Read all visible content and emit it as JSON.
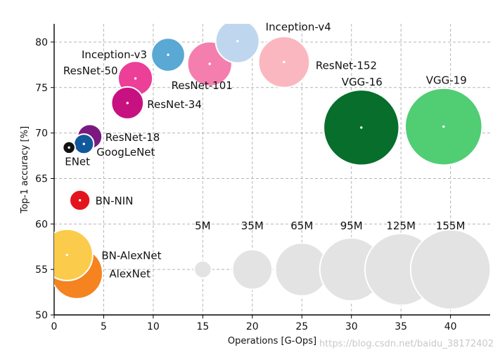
{
  "chart_data": {
    "type": "scatter",
    "xlabel": "Operations [G-Ops]",
    "ylabel": "Top-1 accuracy [%]",
    "xlim": [
      0,
      44
    ],
    "ylim": [
      50,
      82
    ],
    "xticks": [
      "0",
      "5",
      "10",
      "15",
      "20",
      "25",
      "30",
      "35",
      "40"
    ],
    "yticks": [
      "50",
      "55",
      "60",
      "65",
      "70",
      "75",
      "80"
    ],
    "grid": true,
    "points": [
      {
        "name": "AlexNet",
        "x": 2.3,
        "y": 54.6,
        "params_M": 61,
        "color": "#f5831f"
      },
      {
        "name": "BN-AlexNet",
        "x": 1.3,
        "y": 56.6,
        "params_M": 61,
        "color": "#fbcb4b"
      },
      {
        "name": "BN-NIN",
        "x": 2.6,
        "y": 62.6,
        "params_M": 7.6,
        "color": "#e3151c"
      },
      {
        "name": "ENet",
        "x": 1.5,
        "y": 68.4,
        "params_M": 2,
        "color": "#111111"
      },
      {
        "name": "GoogLeNet",
        "x": 3.0,
        "y": 68.8,
        "params_M": 7,
        "color": "#11589c"
      },
      {
        "name": "ResNet-18",
        "x": 3.6,
        "y": 69.6,
        "params_M": 11.7,
        "color": "#7a1a80"
      },
      {
        "name": "ResNet-34",
        "x": 7.4,
        "y": 73.3,
        "params_M": 21.8,
        "color": "#c81181"
      },
      {
        "name": "ResNet-50",
        "x": 8.2,
        "y": 76.0,
        "params_M": 25.6,
        "color": "#ec3f97"
      },
      {
        "name": "ResNet-101",
        "x": 15.7,
        "y": 77.6,
        "params_M": 44.5,
        "color": "#f47fae"
      },
      {
        "name": "ResNet-152",
        "x": 23.2,
        "y": 77.8,
        "params_M": 60.2,
        "color": "#fbb7c0"
      },
      {
        "name": "Inception-v3",
        "x": 11.5,
        "y": 78.6,
        "params_M": 23.8,
        "color": "#5aa8d4"
      },
      {
        "name": "Inception-v4",
        "x": 18.5,
        "y": 80.1,
        "params_M": 42.7,
        "color": "#bed7ee"
      },
      {
        "name": "VGG-16",
        "x": 31.0,
        "y": 70.6,
        "params_M": 138,
        "color": "#076e2c"
      },
      {
        "name": "VGG-19",
        "x": 39.3,
        "y": 70.7,
        "params_M": 144,
        "color": "#51cd74"
      }
    ],
    "size_legend": [
      {
        "label": "5M",
        "x": 15,
        "y": 55,
        "params_M": 5
      },
      {
        "label": "35M",
        "x": 20,
        "y": 55,
        "params_M": 35
      },
      {
        "label": "65M",
        "x": 25,
        "y": 55,
        "params_M": 65
      },
      {
        "label": "95M",
        "x": 30,
        "y": 55,
        "params_M": 95
      },
      {
        "label": "125M",
        "x": 35,
        "y": 55,
        "params_M": 125
      },
      {
        "label": "155M",
        "x": 40,
        "y": 55,
        "params_M": 155
      }
    ],
    "size_legend_color": "#e3e3e3"
  },
  "watermark": "https://blog.csdn.net/baidu_38172402"
}
